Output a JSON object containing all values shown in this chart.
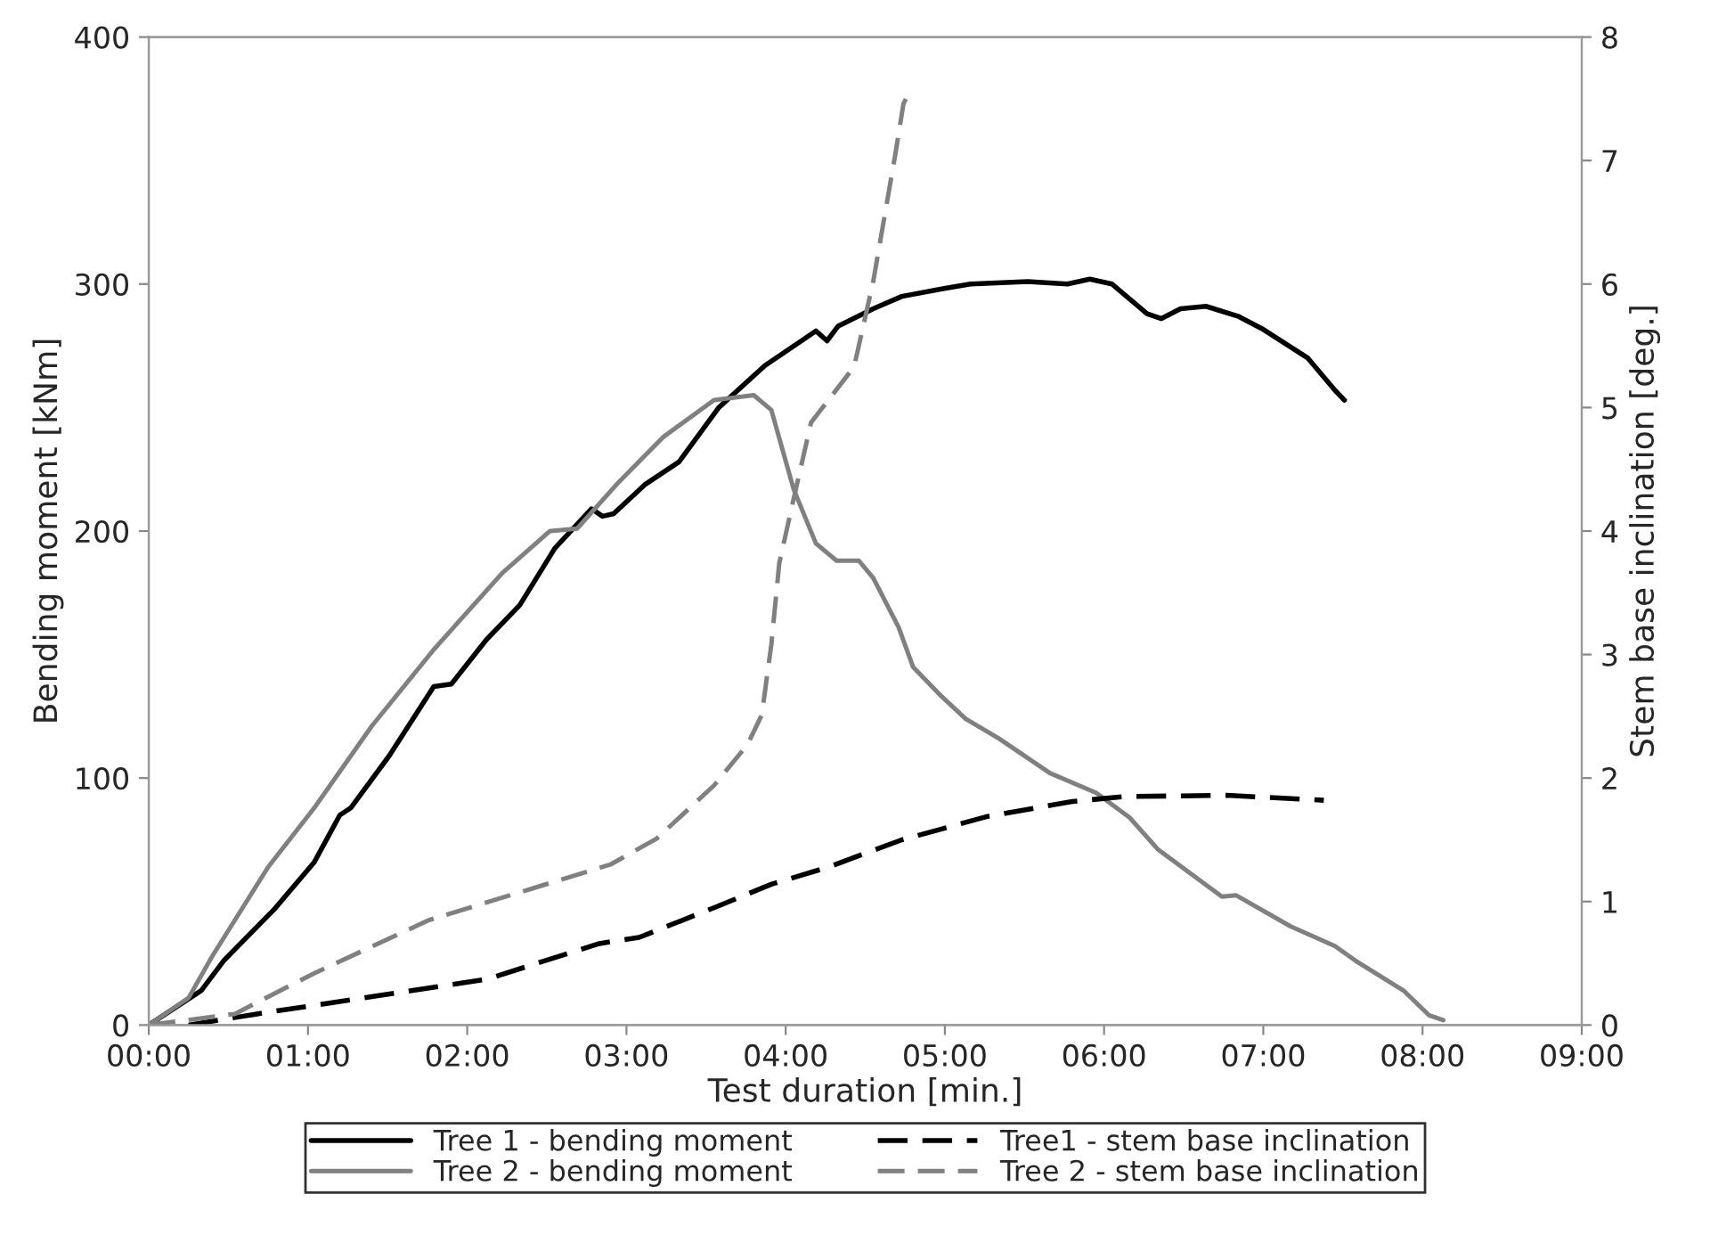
{
  "chart_data": {
    "type": "line",
    "xlabel": "Test duration [min.]",
    "ylabel": "Bending moment [kNm]",
    "y2label": "Stem base inclination [deg.]",
    "xlim": [
      0,
      9
    ],
    "xticks": [
      {
        "value": 0,
        "label": "00:00"
      },
      {
        "value": 1,
        "label": "01:00"
      },
      {
        "value": 2,
        "label": "02:00"
      },
      {
        "value": 3,
        "label": "03:00"
      },
      {
        "value": 4,
        "label": "04:00"
      },
      {
        "value": 5,
        "label": "05:00"
      },
      {
        "value": 6,
        "label": "06:00"
      },
      {
        "value": 7,
        "label": "07:00"
      },
      {
        "value": 8,
        "label": "08:00"
      },
      {
        "value": 9,
        "label": "09:00"
      }
    ],
    "ylim": [
      0,
      400
    ],
    "yticks": [
      0,
      100,
      200,
      300,
      400
    ],
    "y2lim": [
      0,
      8
    ],
    "y2ticks": [
      0,
      1,
      2,
      3,
      4,
      5,
      6,
      7,
      8
    ],
    "grid": false,
    "legend": "bottom",
    "series": [
      {
        "name": "Tree 1 - bending moment",
        "color": "#000000",
        "line_style": "solid",
        "x": [
          0,
          0.33,
          0.47,
          0.79,
          1.04,
          1.2,
          1.27,
          1.51,
          1.79,
          1.9,
          2.12,
          2.33,
          2.55,
          2.78,
          2.85,
          2.92,
          3.12,
          3.33,
          3.58,
          3.87,
          4.19,
          4.26,
          4.33,
          4.55,
          4.73,
          4.98,
          5.16,
          5.52,
          5.77,
          5.91,
          6.05,
          6.27,
          6.36,
          6.48,
          6.64,
          6.84,
          6.99,
          7.28,
          7.45,
          7.51
        ],
        "values": [
          0,
          14,
          26,
          47,
          66,
          85,
          88,
          109,
          137,
          138,
          156,
          170,
          193,
          209,
          206,
          207,
          219,
          228,
          250,
          267,
          281,
          277,
          283,
          290,
          295,
          298,
          300,
          301,
          300,
          302,
          300,
          288,
          286,
          290,
          291,
          287,
          282,
          270,
          257,
          253
        ]
      },
      {
        "name": "Tree 2 - bending moment",
        "color": "#808080",
        "line_style": "solid",
        "x": [
          0,
          0.25,
          0.4,
          0.75,
          1.04,
          1.4,
          1.79,
          2.22,
          2.52,
          2.69,
          2.94,
          3.23,
          3.55,
          3.8,
          3.91,
          4.05,
          4.19,
          4.32,
          4.46,
          4.55,
          4.71,
          4.8,
          4.98,
          5.13,
          5.34,
          5.66,
          5.95,
          6.16,
          6.34,
          6.74,
          6.83,
          7.17,
          7.45,
          7.58,
          7.88,
          8.04,
          8.13
        ],
        "values": [
          0,
          11,
          28,
          64,
          88,
          121,
          152,
          183,
          200,
          201,
          219,
          238,
          253,
          255,
          249,
          217,
          195,
          188,
          188,
          181,
          161,
          145,
          133,
          124,
          116,
          102,
          94,
          84,
          71,
          52,
          52.5,
          40,
          32,
          26,
          14,
          4,
          2
        ]
      },
      {
        "name": "Tree1 - stem base inclination",
        "color": "#000000",
        "line_style": "dashed",
        "axis": "y2",
        "x": [
          0.25,
          0.68,
          1.4,
          2.12,
          2.83,
          3.08,
          3.55,
          3.91,
          4.27,
          4.73,
          5.27,
          5.8,
          6.12,
          6.77,
          7.38
        ],
        "values": [
          0,
          0.09,
          0.23,
          0.37,
          0.66,
          0.71,
          0.95,
          1.14,
          1.28,
          1.5,
          1.69,
          1.81,
          1.85,
          1.86,
          1.82
        ]
      },
      {
        "name": "Tree 2 - stem base inclination",
        "color": "#808080",
        "line_style": "dashed",
        "axis": "y2",
        "x": [
          0,
          0.54,
          1.04,
          1.76,
          2.47,
          2.9,
          3.19,
          3.55,
          3.76,
          3.85,
          3.91,
          3.96,
          4.05,
          4.16,
          4.43,
          4.55,
          4.69,
          4.74,
          4.78
        ],
        "values": [
          0,
          0.09,
          0.42,
          0.85,
          1.13,
          1.3,
          1.51,
          1.94,
          2.27,
          2.51,
          3.08,
          3.74,
          4.26,
          4.88,
          5.33,
          6.02,
          7.06,
          7.46,
          7.56
        ]
      }
    ]
  }
}
